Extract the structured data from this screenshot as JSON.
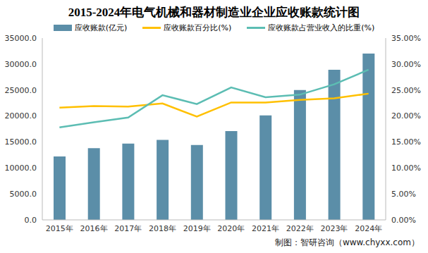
{
  "chart_data": {
    "type": "bar",
    "title": "2015-2024年电气机械和器材制造业企业应收账款统计图",
    "categories": [
      "2015年",
      "2016年",
      "2017年",
      "2018年",
      "2019年",
      "2020年",
      "2021年",
      "2022年",
      "2023年",
      "2024年"
    ],
    "series": [
      {
        "name": "应收账款(亿元)",
        "type": "bar",
        "color": "#5b8ea8",
        "values": [
          12200,
          13800,
          14700,
          15400,
          14400,
          17100,
          20100,
          25000,
          28900,
          32000
        ]
      },
      {
        "name": "应收账款百分比(%)",
        "type": "line",
        "axis": "y2",
        "color": "#ffc000",
        "values": [
          21.6,
          21.9,
          21.8,
          22.4,
          19.9,
          22.6,
          22.6,
          23.1,
          23.4,
          24.3
        ]
      },
      {
        "name": "应收账款占营业收入的比重(%)",
        "type": "line",
        "axis": "y2",
        "color": "#5cbdb3",
        "values": [
          17.8,
          18.8,
          19.7,
          24.0,
          22.3,
          25.5,
          23.6,
          24.1,
          26.1,
          28.9
        ]
      }
    ],
    "ylim": [
      0,
      35000
    ],
    "yticks": [
      {
        "value": 0,
        "label": "0.0"
      },
      {
        "value": 5000,
        "label": "5000.0"
      },
      {
        "value": 10000,
        "label": "10000.0"
      },
      {
        "value": 15000,
        "label": "15000.0"
      },
      {
        "value": 20000,
        "label": "20000.0"
      },
      {
        "value": 25000,
        "label": "25000.0"
      },
      {
        "value": 30000,
        "label": "30000.0"
      },
      {
        "value": 35000,
        "label": "35000.0"
      }
    ],
    "y2lim": [
      0,
      35
    ],
    "y2ticks": [
      {
        "value": 0,
        "label": "0.00%"
      },
      {
        "value": 5,
        "label": "5.00%"
      },
      {
        "value": 10,
        "label": "10.00%"
      },
      {
        "value": 15,
        "label": "15.00%"
      },
      {
        "value": 20,
        "label": "20.00%"
      },
      {
        "value": 25,
        "label": "25.00%"
      },
      {
        "value": 30,
        "label": "30.00%"
      },
      {
        "value": 35,
        "label": "35.00%"
      }
    ],
    "grid": false,
    "legend": "top",
    "source": "制图：智研咨询（www.chyxx.com）"
  }
}
